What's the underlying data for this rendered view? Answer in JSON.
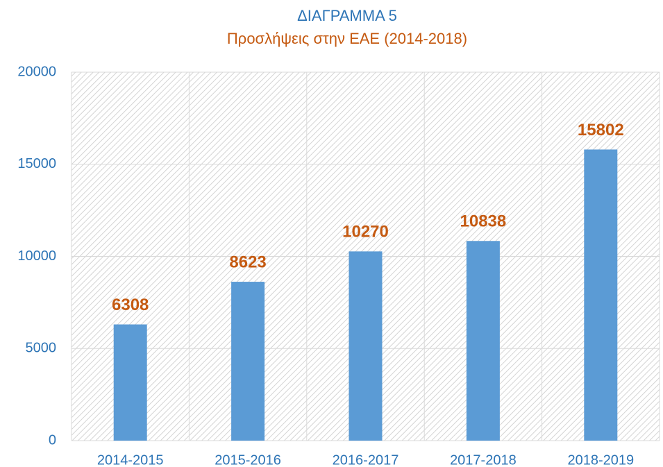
{
  "chart_data": {
    "type": "bar",
    "title": "ΔΙΑΓΡΑΜΜΑ 5",
    "subtitle": "Προσλήψεις στην ΕΑΕ (2014-2018)",
    "categories": [
      "2014-2015",
      "2015-2016",
      "2016-2017",
      "2017-2018",
      "2018-2019"
    ],
    "values": [
      6308,
      8623,
      10270,
      10838,
      15802
    ],
    "color": "#5b9bd5",
    "ylim": [
      0,
      20000
    ],
    "yticks": [
      0,
      5000,
      10000,
      15000,
      20000
    ],
    "grid": true
  }
}
